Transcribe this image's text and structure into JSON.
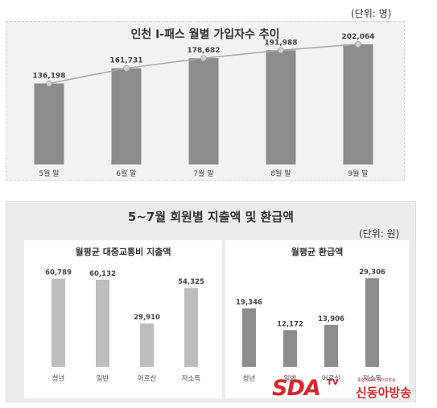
{
  "top_unit": "(단위: 명)",
  "bottom_header": "5~7월 회원별 지출액 및 환급액",
  "bottom_unit": "(단위: 원)",
  "colors": {
    "bar_dark": "#8c8c8c",
    "bar_light": "#bdbdbd",
    "line": "#aaaaaa",
    "logo_red": "#d7262b"
  },
  "logo": {
    "brand": "SDA",
    "tv": "TV",
    "small": "종합미디어 인터넷방송",
    "name": "신동아방송"
  },
  "chart_data": [
    {
      "type": "bar",
      "title": "인천 I-패스 월별 가입자수 추이",
      "categories": [
        "5월 말",
        "6월 말",
        "7월 말",
        "8월 말",
        "9월 말"
      ],
      "values": [
        136198,
        161731,
        178682,
        191988,
        202064
      ],
      "labels": [
        "136,198",
        "161,731",
        "178,682",
        "191,988",
        "202,064"
      ],
      "overlay": "line",
      "ylim": [
        0,
        210000
      ]
    },
    {
      "type": "bar",
      "title": "월평균 대중교통비 지출액",
      "categories": [
        "청년",
        "일반",
        "어르신",
        "저소득"
      ],
      "values": [
        60789,
        60132,
        29910,
        54325
      ],
      "labels": [
        "60,789",
        "60,132",
        "29,910",
        "54,325"
      ],
      "ylim": [
        0,
        75000
      ]
    },
    {
      "type": "bar",
      "title": "월평균 환급액",
      "categories": [
        "청년",
        "일반",
        "어르신",
        "저소득"
      ],
      "values": [
        19346,
        12172,
        13906,
        29306
      ],
      "labels": [
        "19,346",
        "12,172",
        "13,906",
        "29,306"
      ],
      "ylim": [
        0,
        36000
      ]
    }
  ]
}
